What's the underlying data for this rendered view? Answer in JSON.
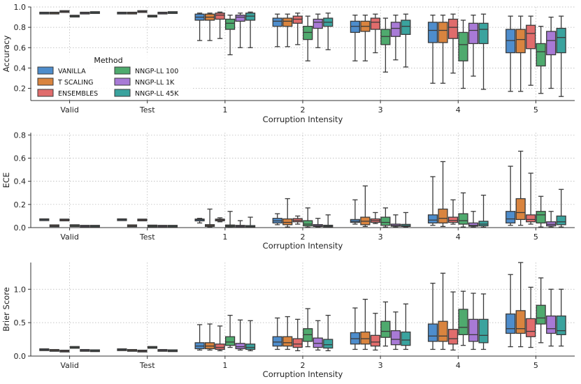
{
  "chart_data": [
    {
      "type": "box",
      "ylabel": "Accuracy",
      "xlabel": "Corruption Intensity",
      "ylim": [
        0.08,
        1.0
      ],
      "yticks": [
        0.2,
        0.4,
        0.6,
        0.8,
        1.0
      ],
      "ytick_labels": [
        "0.2",
        "0.4",
        "0.6",
        "0.8",
        "1.0"
      ],
      "legend": {
        "title": "Method",
        "entries": [
          "VANILLA",
          "T SCALING",
          "ENSEMBLES",
          "NNGP-LL 100",
          "NNGP-LL 1K",
          "NNGP-LL 45K"
        ]
      },
      "groups": [
        {
          "label": "Valid",
          "boxes": [
            [
              0.94,
              0.94,
              0.94,
              0.94,
              0.94
            ],
            [
              0.94,
              0.94,
              0.94,
              0.94,
              0.94
            ],
            [
              0.955,
              0.955,
              0.955,
              0.955,
              0.955
            ],
            [
              0.91,
              0.91,
              0.91,
              0.91,
              0.91
            ],
            [
              0.94,
              0.94,
              0.94,
              0.94,
              0.94
            ],
            [
              0.945,
              0.945,
              0.945,
              0.945,
              0.945
            ]
          ]
        },
        {
          "label": "Test",
          "boxes": [
            [
              0.94,
              0.94,
              0.94,
              0.94,
              0.94
            ],
            [
              0.94,
              0.94,
              0.94,
              0.94,
              0.94
            ],
            [
              0.955,
              0.955,
              0.955,
              0.955,
              0.955
            ],
            [
              0.91,
              0.91,
              0.91,
              0.91,
              0.91
            ],
            [
              0.94,
              0.94,
              0.94,
              0.94,
              0.94
            ],
            [
              0.945,
              0.945,
              0.945,
              0.945,
              0.945
            ]
          ]
        },
        {
          "label": "1",
          "boxes": [
            [
              0.67,
              0.87,
              0.9,
              0.93,
              0.94
            ],
            [
              0.67,
              0.87,
              0.9,
              0.93,
              0.94
            ],
            [
              0.69,
              0.88,
              0.92,
              0.94,
              0.95
            ],
            [
              0.53,
              0.78,
              0.84,
              0.88,
              0.92
            ],
            [
              0.6,
              0.86,
              0.9,
              0.92,
              0.94
            ],
            [
              0.6,
              0.87,
              0.91,
              0.94,
              0.95
            ]
          ]
        },
        {
          "label": "2",
          "boxes": [
            [
              0.61,
              0.81,
              0.86,
              0.89,
              0.93
            ],
            [
              0.61,
              0.81,
              0.86,
              0.89,
              0.93
            ],
            [
              0.63,
              0.84,
              0.88,
              0.91,
              0.94
            ],
            [
              0.47,
              0.68,
              0.75,
              0.81,
              0.91
            ],
            [
              0.6,
              0.79,
              0.85,
              0.88,
              0.93
            ],
            [
              0.58,
              0.81,
              0.85,
              0.89,
              0.94
            ]
          ]
        },
        {
          "label": "3",
          "boxes": [
            [
              0.47,
              0.75,
              0.81,
              0.86,
              0.92
            ],
            [
              0.47,
              0.76,
              0.81,
              0.86,
              0.92
            ],
            [
              0.55,
              0.78,
              0.85,
              0.89,
              0.93
            ],
            [
              0.36,
              0.63,
              0.71,
              0.78,
              0.89
            ],
            [
              0.48,
              0.71,
              0.79,
              0.85,
              0.92
            ],
            [
              0.41,
              0.73,
              0.81,
              0.87,
              0.93
            ]
          ]
        },
        {
          "label": "4",
          "boxes": [
            [
              0.25,
              0.65,
              0.77,
              0.85,
              0.92
            ],
            [
              0.25,
              0.65,
              0.77,
              0.85,
              0.92
            ],
            [
              0.35,
              0.69,
              0.8,
              0.88,
              0.93
            ],
            [
              0.2,
              0.47,
              0.63,
              0.75,
              0.87
            ],
            [
              0.32,
              0.64,
              0.77,
              0.84,
              0.92
            ],
            [
              0.19,
              0.64,
              0.78,
              0.84,
              0.93
            ]
          ]
        },
        {
          "label": "5",
          "boxes": [
            [
              0.17,
              0.55,
              0.67,
              0.78,
              0.91
            ],
            [
              0.17,
              0.55,
              0.68,
              0.78,
              0.91
            ],
            [
              0.23,
              0.59,
              0.74,
              0.82,
              0.91
            ],
            [
              0.15,
              0.42,
              0.56,
              0.64,
              0.81
            ],
            [
              0.2,
              0.53,
              0.67,
              0.76,
              0.9
            ],
            [
              0.12,
              0.55,
              0.7,
              0.79,
              0.91
            ]
          ]
        }
      ]
    },
    {
      "type": "box",
      "ylabel": "ECE",
      "xlabel": "Corruption Intensity",
      "ylim": [
        0.0,
        0.82
      ],
      "yticks": [
        0.0,
        0.2,
        0.4,
        0.6,
        0.8
      ],
      "ytick_labels": [
        "0.0",
        "0.2",
        "0.4",
        "0.6",
        "0.8"
      ],
      "groups": [
        {
          "label": "Valid",
          "boxes": [
            [
              0.068,
              0.068,
              0.068,
              0.068,
              0.068
            ],
            [
              0.016,
              0.016,
              0.016,
              0.016,
              0.016
            ],
            [
              0.066,
              0.066,
              0.066,
              0.066,
              0.066
            ],
            [
              0.017,
              0.017,
              0.017,
              0.017,
              0.017
            ],
            [
              0.012,
              0.012,
              0.012,
              0.012,
              0.012
            ],
            [
              0.012,
              0.012,
              0.012,
              0.012,
              0.012
            ]
          ]
        },
        {
          "label": "Test",
          "boxes": [
            [
              0.068,
              0.068,
              0.068,
              0.068,
              0.068
            ],
            [
              0.016,
              0.016,
              0.016,
              0.016,
              0.016
            ],
            [
              0.066,
              0.066,
              0.066,
              0.066,
              0.066
            ],
            [
              0.014,
              0.014,
              0.014,
              0.014,
              0.014
            ],
            [
              0.012,
              0.012,
              0.012,
              0.012,
              0.012
            ],
            [
              0.012,
              0.012,
              0.012,
              0.012,
              0.012
            ]
          ]
        },
        {
          "label": "1",
          "boxes": [
            [
              0.04,
              0.058,
              0.068,
              0.074,
              0.08
            ],
            [
              0.005,
              0.012,
              0.018,
              0.026,
              0.16
            ],
            [
              0.05,
              0.06,
              0.066,
              0.075,
              0.085
            ],
            [
              0.005,
              0.01,
              0.015,
              0.022,
              0.14
            ],
            [
              0.005,
              0.009,
              0.012,
              0.018,
              0.06
            ],
            [
              0.003,
              0.007,
              0.01,
              0.016,
              0.09
            ]
          ]
        },
        {
          "label": "2",
          "boxes": [
            [
              0.025,
              0.04,
              0.058,
              0.08,
              0.12
            ],
            [
              0.005,
              0.025,
              0.045,
              0.075,
              0.25
            ],
            [
              0.03,
              0.05,
              0.062,
              0.078,
              0.1
            ],
            [
              0.004,
              0.015,
              0.03,
              0.06,
              0.17
            ],
            [
              0.004,
              0.01,
              0.016,
              0.026,
              0.08
            ],
            [
              0.003,
              0.008,
              0.013,
              0.022,
              0.11
            ]
          ]
        },
        {
          "label": "3",
          "boxes": [
            [
              0.03,
              0.045,
              0.055,
              0.07,
              0.24
            ],
            [
              0.01,
              0.025,
              0.055,
              0.09,
              0.36
            ],
            [
              0.035,
              0.045,
              0.06,
              0.075,
              0.13
            ],
            [
              0.005,
              0.02,
              0.045,
              0.09,
              0.17
            ],
            [
              0.004,
              0.012,
              0.018,
              0.03,
              0.11
            ],
            [
              0.004,
              0.01,
              0.016,
              0.028,
              0.13
            ]
          ]
        },
        {
          "label": "4",
          "boxes": [
            [
              0.02,
              0.04,
              0.065,
              0.11,
              0.44
            ],
            [
              0.01,
              0.04,
              0.08,
              0.16,
              0.57
            ],
            [
              0.03,
              0.045,
              0.062,
              0.09,
              0.24
            ],
            [
              0.005,
              0.03,
              0.06,
              0.12,
              0.3
            ],
            [
              0.004,
              0.012,
              0.02,
              0.04,
              0.14
            ],
            [
              0.004,
              0.015,
              0.03,
              0.055,
              0.28
            ]
          ]
        },
        {
          "label": "5",
          "boxes": [
            [
              0.02,
              0.04,
              0.075,
              0.14,
              0.53
            ],
            [
              0.02,
              0.07,
              0.13,
              0.25,
              0.66
            ],
            [
              0.03,
              0.05,
              0.07,
              0.11,
              0.47
            ],
            [
              0.005,
              0.04,
              0.11,
              0.14,
              0.27
            ],
            [
              0.005,
              0.015,
              0.028,
              0.05,
              0.14
            ],
            [
              0.005,
              0.025,
              0.05,
              0.1,
              0.33
            ]
          ]
        }
      ]
    },
    {
      "type": "box",
      "ylabel": "Brier Score",
      "xlabel": "Corruption Intensity",
      "ylim": [
        0.0,
        1.4
      ],
      "yticks": [
        0.0,
        0.5,
        1.0
      ],
      "ytick_labels": [
        "0.0",
        "0.5",
        "1.0"
      ],
      "groups": [
        {
          "label": "Valid",
          "boxes": [
            [
              0.095,
              0.095,
              0.095,
              0.095,
              0.095
            ],
            [
              0.085,
              0.085,
              0.085,
              0.085,
              0.085
            ],
            [
              0.075,
              0.075,
              0.075,
              0.075,
              0.075
            ],
            [
              0.13,
              0.13,
              0.13,
              0.13,
              0.13
            ],
            [
              0.085,
              0.085,
              0.085,
              0.085,
              0.085
            ],
            [
              0.08,
              0.08,
              0.08,
              0.08,
              0.08
            ]
          ]
        },
        {
          "label": "Test",
          "boxes": [
            [
              0.095,
              0.095,
              0.095,
              0.095,
              0.095
            ],
            [
              0.085,
              0.085,
              0.085,
              0.085,
              0.085
            ],
            [
              0.075,
              0.075,
              0.075,
              0.075,
              0.075
            ],
            [
              0.13,
              0.13,
              0.13,
              0.13,
              0.13
            ],
            [
              0.085,
              0.085,
              0.085,
              0.085,
              0.085
            ],
            [
              0.08,
              0.08,
              0.08,
              0.08,
              0.08
            ]
          ]
        },
        {
          "label": "1",
          "boxes": [
            [
              0.09,
              0.11,
              0.15,
              0.2,
              0.47
            ],
            [
              0.09,
              0.11,
              0.15,
              0.2,
              0.48
            ],
            [
              0.08,
              0.1,
              0.13,
              0.18,
              0.45
            ],
            [
              0.13,
              0.16,
              0.21,
              0.29,
              0.61
            ],
            [
              0.09,
              0.11,
              0.14,
              0.19,
              0.54
            ],
            [
              0.08,
              0.1,
              0.13,
              0.18,
              0.53
            ]
          ]
        },
        {
          "label": "2",
          "boxes": [
            [
              0.1,
              0.15,
              0.21,
              0.29,
              0.57
            ],
            [
              0.1,
              0.15,
              0.2,
              0.29,
              0.59
            ],
            [
              0.08,
              0.13,
              0.18,
              0.26,
              0.55
            ],
            [
              0.14,
              0.22,
              0.32,
              0.41,
              0.71
            ],
            [
              0.09,
              0.13,
              0.19,
              0.27,
              0.53
            ],
            [
              0.08,
              0.12,
              0.17,
              0.25,
              0.61
            ]
          ]
        },
        {
          "label": "3",
          "boxes": [
            [
              0.1,
              0.18,
              0.26,
              0.35,
              0.72
            ],
            [
              0.1,
              0.18,
              0.26,
              0.36,
              0.85
            ],
            [
              0.09,
              0.15,
              0.21,
              0.31,
              0.64
            ],
            [
              0.15,
              0.28,
              0.37,
              0.52,
              0.81
            ],
            [
              0.1,
              0.17,
              0.25,
              0.38,
              0.66
            ],
            [
              0.1,
              0.16,
              0.24,
              0.36,
              0.78
            ]
          ]
        },
        {
          "label": "4",
          "boxes": [
            [
              0.1,
              0.22,
              0.3,
              0.48,
              1.09
            ],
            [
              0.1,
              0.22,
              0.3,
              0.52,
              1.24
            ],
            [
              0.09,
              0.18,
              0.26,
              0.4,
              0.96
            ],
            [
              0.16,
              0.32,
              0.43,
              0.7,
              0.97
            ],
            [
              0.1,
              0.22,
              0.32,
              0.55,
              0.94
            ],
            [
              0.1,
              0.2,
              0.31,
              0.55,
              0.93
            ]
          ]
        },
        {
          "label": "5",
          "boxes": [
            [
              0.14,
              0.34,
              0.41,
              0.63,
              1.22
            ],
            [
              0.14,
              0.34,
              0.41,
              0.68,
              1.4
            ],
            [
              0.13,
              0.29,
              0.37,
              0.56,
              1.03
            ],
            [
              0.2,
              0.48,
              0.57,
              0.76,
              1.17
            ],
            [
              0.15,
              0.34,
              0.41,
              0.6,
              1.0
            ],
            [
              0.15,
              0.32,
              0.38,
              0.6,
              1.0
            ]
          ]
        }
      ]
    }
  ],
  "colors": [
    "#4e8dcc",
    "#d9843f",
    "#e06c6c",
    "#4faa6e",
    "#a87ad6",
    "#3aa39e"
  ]
}
